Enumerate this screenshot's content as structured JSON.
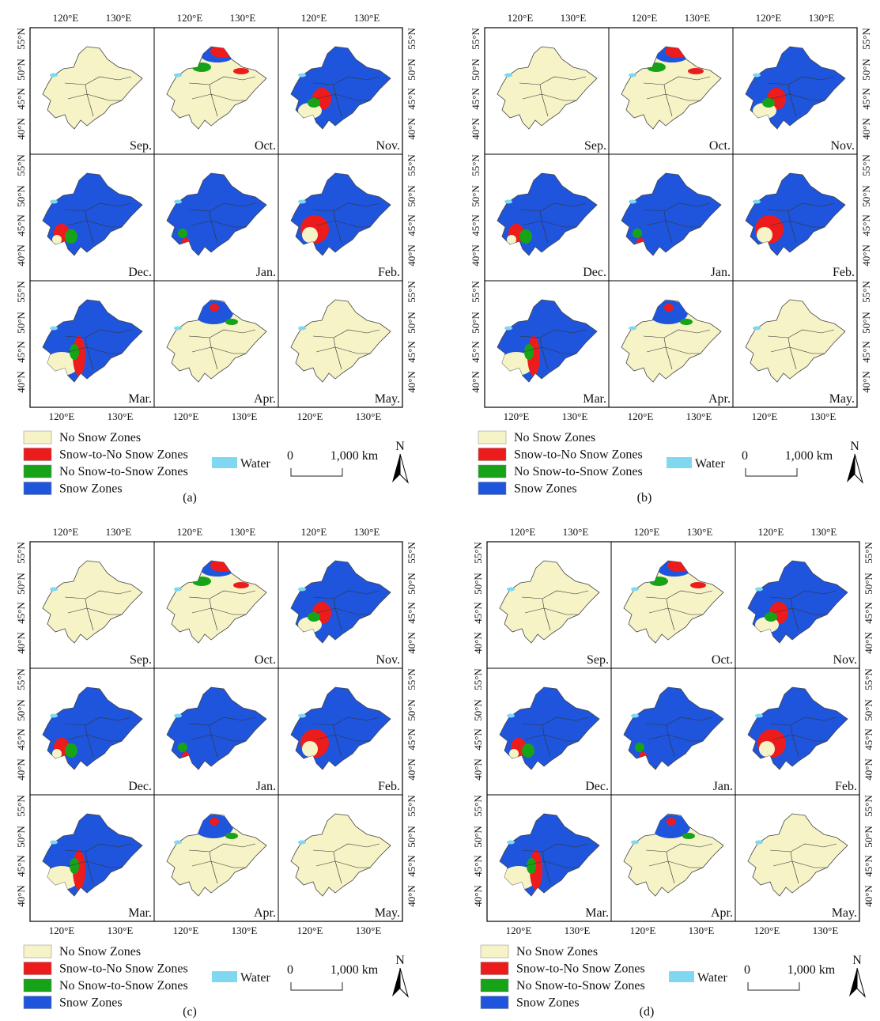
{
  "months": [
    "Sep.",
    "Oct.",
    "Nov.",
    "Dec.",
    "Jan.",
    "Feb.",
    "Mar.",
    "Apr.",
    "May."
  ],
  "lon_ticks": [
    "120°E",
    "130°E"
  ],
  "lat_ticks": [
    "40°N",
    "45°N",
    "50°N",
    "55°N"
  ],
  "legend": {
    "items": [
      {
        "label": "No Snow Zones",
        "color": "#f6f3c6"
      },
      {
        "label": "Snow-to-No Snow Zones",
        "color": "#ec1c1c"
      },
      {
        "label": "No Snow-to-Snow Zones",
        "color": "#16a318"
      },
      {
        "label": "Snow Zones",
        "color": "#1f55dc"
      }
    ],
    "water": {
      "label": "Water",
      "color": "#80d8f0"
    }
  },
  "scale": {
    "start": "0",
    "end": "1,000 km"
  },
  "north": "N",
  "panels": [
    {
      "label": "(a)"
    },
    {
      "label": "(b)"
    },
    {
      "label": "(c)"
    },
    {
      "label": "(d)"
    }
  ]
}
